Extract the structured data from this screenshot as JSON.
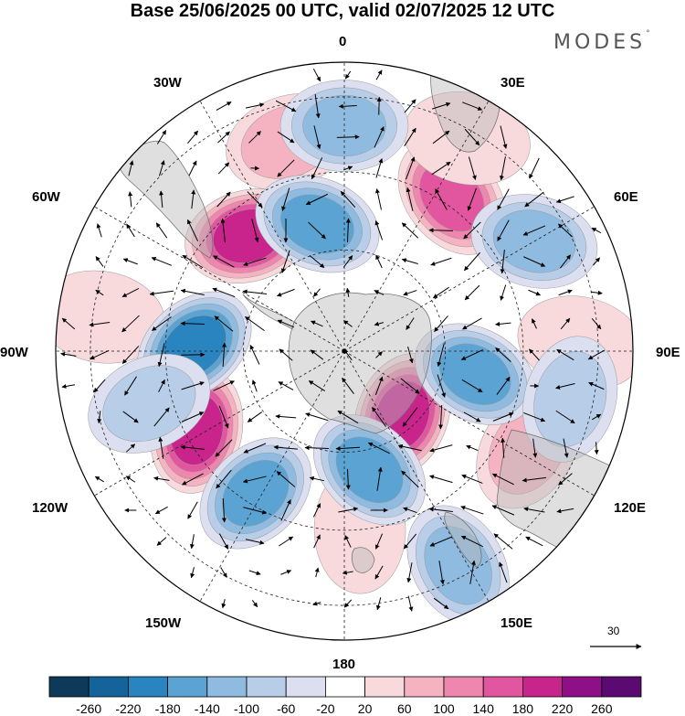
{
  "title": "Base 25/06/2025 00 UTC, valid 02/07/2025 12 UTC",
  "logo": {
    "text": "MODES",
    "mark": "°"
  },
  "projection": "south-polar-stereographic",
  "longitude_labels": [
    {
      "id": "0",
      "text": "0"
    },
    {
      "id": "30e",
      "text": "30E"
    },
    {
      "id": "60e",
      "text": "60E"
    },
    {
      "id": "90e",
      "text": "90E"
    },
    {
      "id": "120e",
      "text": "120E"
    },
    {
      "id": "150e",
      "text": "150E"
    },
    {
      "id": "180",
      "text": "180"
    },
    {
      "id": "150w",
      "text": "150W"
    },
    {
      "id": "120w",
      "text": "120W"
    },
    {
      "id": "90w",
      "text": "90W"
    },
    {
      "id": "60w",
      "text": "60W"
    },
    {
      "id": "30w",
      "text": "30W"
    }
  ],
  "reference_vector": {
    "label": "30"
  },
  "anomaly_field": {
    "highs": [
      {
        "lon": -15,
        "colat": 0.75,
        "value": 110
      },
      {
        "lon": -40,
        "colat": 0.52,
        "value": 200
      },
      {
        "lon": -118,
        "colat": 0.58,
        "value": 200
      },
      {
        "lon": 138,
        "colat": 0.3,
        "value": 210
      },
      {
        "lon": 118,
        "colat": 0.72,
        "value": 110
      },
      {
        "lon": 35,
        "colat": 0.65,
        "value": 160
      },
      {
        "lon": 175,
        "colat": 0.62,
        "value": 60
      },
      {
        "lon": 88,
        "colat": 0.82,
        "value": 60
      },
      {
        "lon": -82,
        "colat": 0.85,
        "value": 50
      },
      {
        "lon": 30,
        "colat": 0.85,
        "value": 50
      }
    ],
    "lows": [
      {
        "lon": 0,
        "colat": 0.78,
        "value": -120
      },
      {
        "lon": -12,
        "colat": 0.45,
        "value": -180
      },
      {
        "lon": -88,
        "colat": 0.52,
        "value": -220
      },
      {
        "lon": -105,
        "colat": 0.7,
        "value": -110
      },
      {
        "lon": -148,
        "colat": 0.58,
        "value": -190
      },
      {
        "lon": 168,
        "colat": 0.42,
        "value": -190
      },
      {
        "lon": 152,
        "colat": 0.84,
        "value": -150
      },
      {
        "lon": 100,
        "colat": 0.46,
        "value": -160
      },
      {
        "lon": 60,
        "colat": 0.76,
        "value": -150
      },
      {
        "lon": 102,
        "colat": 0.8,
        "value": -80
      }
    ]
  },
  "colorbar": {
    "levels": [
      "-260",
      "-220",
      "-180",
      "-140",
      "-100",
      "-60",
      "-20",
      "20",
      "60",
      "100",
      "140",
      "180",
      "220",
      "260"
    ],
    "colors": [
      "#0d3a5a",
      "#14639a",
      "#2a84bf",
      "#5aa3d2",
      "#8fbbe0",
      "#b8cde7",
      "#dcdff0",
      "#ffffff",
      "#f8dadd",
      "#f5b3c2",
      "#ef86ad",
      "#e2559f",
      "#c9238c",
      "#8e0f86",
      "#5a0a70"
    ]
  }
}
